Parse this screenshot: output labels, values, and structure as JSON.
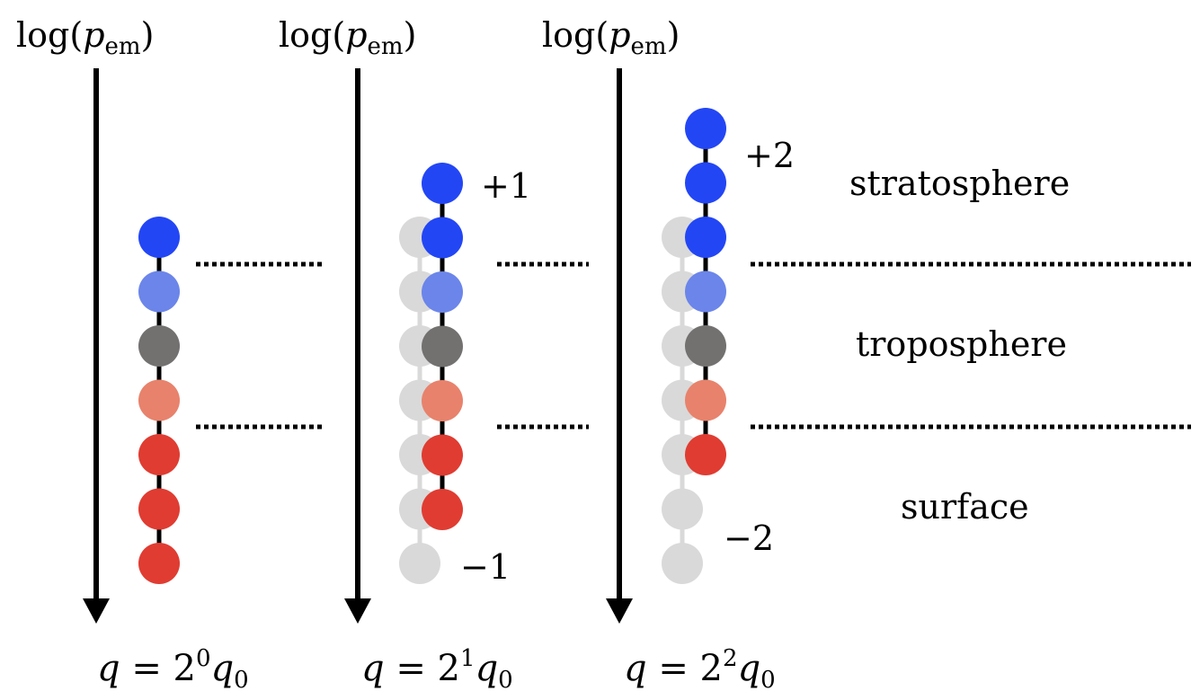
{
  "axis": {
    "label_main": "log(",
    "label_var": "p",
    "label_sub": "em",
    "label_close": ")"
  },
  "columns": [
    {
      "id": "col1",
      "formula": {
        "var": "q",
        "eq": " = 2",
        "exp": "0",
        "q0": "q",
        "q0sub": "0"
      },
      "ghost_count": 0,
      "shift_label": "",
      "shift_label_ghost": ""
    },
    {
      "id": "col2",
      "formula": {
        "var": "q",
        "eq": " = 2",
        "exp": "1",
        "q0": "q",
        "q0sub": "0"
      },
      "ghost_count": 7,
      "shift_label": "+1",
      "shift_label_ghost": "−1"
    },
    {
      "id": "col3",
      "formula": {
        "var": "q",
        "eq": " = 2",
        "exp": "2",
        "q0": "q",
        "q0sub": "0"
      },
      "ghost_count": 7,
      "shift_label": "+2",
      "shift_label_ghost": "−2"
    }
  ],
  "layers": {
    "stratosphere": "stratosphere",
    "troposphere": "troposphere",
    "surface": "surface"
  },
  "colors": {
    "strong_blue": "#2346f5",
    "light_blue": "#6b85ea",
    "grey": "#737070",
    "salmon": "#e8826c",
    "red": "#e03c32",
    "ghost": "#d9d9d9",
    "line": "#000000"
  },
  "column_chains": [
    [
      "strong_blue",
      "light_blue",
      "grey",
      "salmon",
      "red",
      "red",
      "red"
    ],
    [
      "strong_blue",
      "strong_blue",
      "light_blue",
      "grey",
      "salmon",
      "red",
      "red"
    ],
    [
      "strong_blue",
      "strong_blue",
      "strong_blue",
      "light_blue",
      "grey",
      "salmon",
      "red"
    ]
  ]
}
